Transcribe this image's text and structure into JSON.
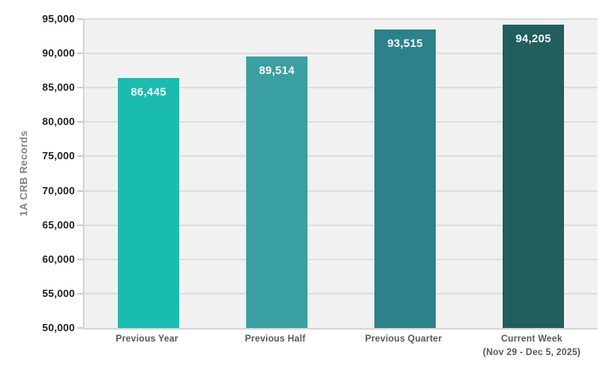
{
  "chart_data": {
    "type": "bar",
    "title": "",
    "xlabel": "",
    "ylabel": "1A CRB Records",
    "categories": [
      "Previous Year",
      "Previous Half",
      "Previous Quarter",
      "Current Week\n(Nov 29 - Dec 5, 2025)"
    ],
    "values": [
      86445,
      89514,
      93515,
      94205
    ],
    "value_labels": [
      "86,445",
      "89,514",
      "93,515",
      "94,205"
    ],
    "bar_colors": [
      "#1abcb0",
      "#3aa0a2",
      "#2c818b",
      "#205f5d"
    ],
    "ylim": [
      50000,
      95000
    ],
    "ytick_step": 5000,
    "ytick_labels": [
      "50,000",
      "55,000",
      "60,000",
      "65,000",
      "70,000",
      "75,000",
      "80,000",
      "85,000",
      "90,000",
      "95,000"
    ],
    "grid": true,
    "legend_position": "none",
    "colors": {
      "page_background": "#ffffff",
      "plot_background": "#f1f1f1",
      "gridline": "#dcdedd",
      "axis_line": "#d4d7d6",
      "tick_mark": "#c9cccb",
      "ytick_label": "#1f1f1f",
      "category_label": "#595959",
      "ylabel_text": "#858585",
      "value_label": "#ffffff"
    }
  }
}
